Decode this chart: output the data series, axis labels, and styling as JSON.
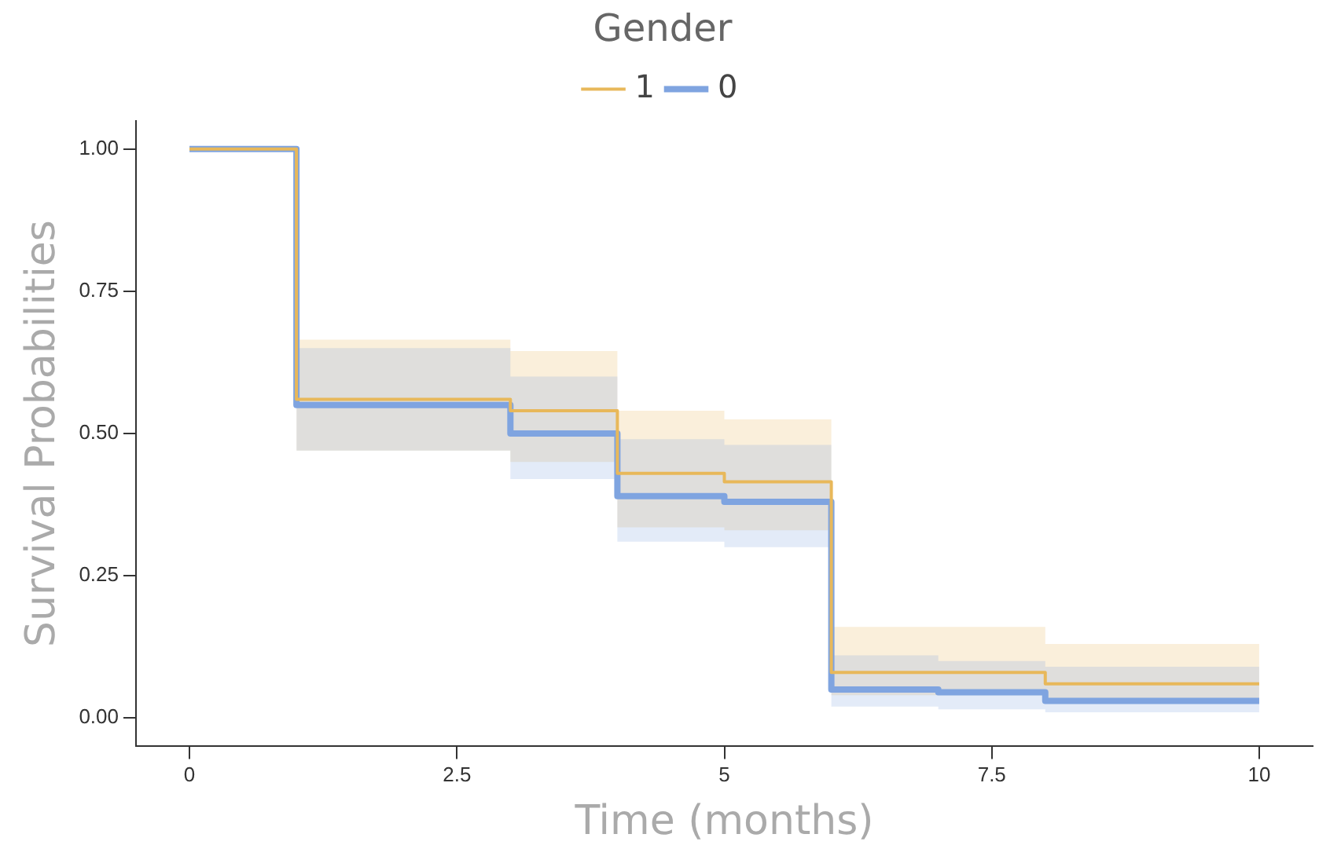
{
  "chart_data": {
    "type": "step",
    "xlabel": "Time (months)",
    "ylabel": "Survival Probabilities",
    "legend_title": "Gender",
    "legend": "top",
    "grid": false,
    "x": [
      0,
      1,
      3,
      4,
      5,
      6,
      7,
      8,
      10
    ],
    "xlim": [
      -0.5,
      10.5
    ],
    "xticks": [
      0,
      2.5,
      5,
      7.5,
      10
    ],
    "ylim": [
      -0.05,
      1.05
    ],
    "yticks": [
      {
        "value": 0,
        "label": "0.00"
      },
      {
        "value": 0.25,
        "label": "0.25"
      },
      {
        "value": 0.5,
        "label": "0.50"
      },
      {
        "value": 0.75,
        "label": "0.75"
      },
      {
        "value": 1,
        "label": "1.00"
      }
    ],
    "series": [
      {
        "name": "0",
        "color": "#7fa4e0",
        "values": [
          1,
          0.55,
          0.5,
          0.39,
          0.38,
          0.05,
          0.045,
          0.03,
          0.03
        ],
        "lower": [
          null,
          0.47,
          0.42,
          0.31,
          0.3,
          0.02,
          0.015,
          0.01,
          0.01
        ],
        "upper": [
          null,
          0.65,
          0.6,
          0.49,
          0.48,
          0.11,
          0.1,
          0.09,
          0.09
        ]
      },
      {
        "name": "1",
        "color": "#e8b85a",
        "values": [
          1,
          0.56,
          0.54,
          0.43,
          0.415,
          0.08,
          0.08,
          0.06,
          0.06
        ],
        "lower": [
          null,
          0.47,
          0.45,
          0.335,
          0.33,
          0.04,
          0.04,
          0.03,
          0.03
        ],
        "upper": [
          null,
          0.665,
          0.645,
          0.54,
          0.525,
          0.16,
          0.16,
          0.13,
          0.13
        ]
      }
    ]
  }
}
